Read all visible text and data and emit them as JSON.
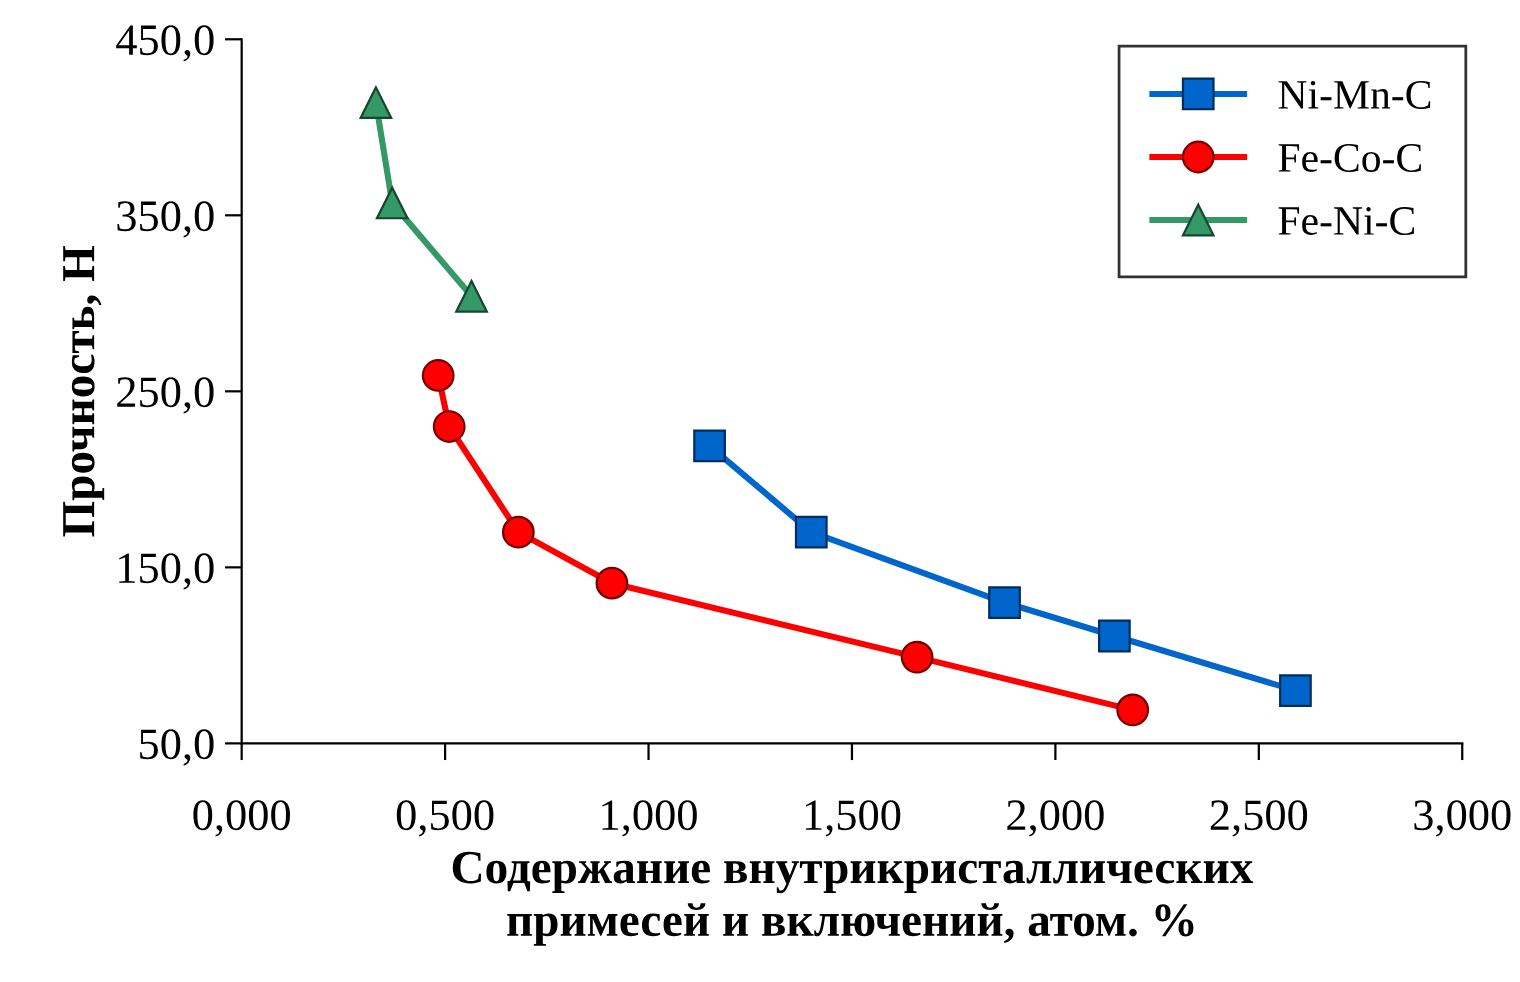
{
  "chart_data": {
    "type": "line",
    "xlabel": "Содержание внутрикристаллических\nпримесей и включений, атом. %",
    "ylabel": "Прочность, Н",
    "xlim": [
      0,
      3
    ],
    "ylim": [
      50,
      450
    ],
    "xticks": [
      {
        "value": 0,
        "label": "0,000"
      },
      {
        "value": 0.5,
        "label": "0,500"
      },
      {
        "value": 1,
        "label": "1,000"
      },
      {
        "value": 1.5,
        "label": "1,500"
      },
      {
        "value": 2,
        "label": "2,000"
      },
      {
        "value": 2.5,
        "label": "2,500"
      },
      {
        "value": 3,
        "label": "3,000"
      }
    ],
    "yticks": [
      {
        "value": 50,
        "label": "50,0"
      },
      {
        "value": 150,
        "label": "150,0"
      },
      {
        "value": 250,
        "label": "250,0"
      },
      {
        "value": 350,
        "label": "350,0"
      },
      {
        "value": 450,
        "label": "450,0"
      }
    ],
    "grid": false,
    "legend": "top right",
    "series": [
      {
        "name": "Ni-Mn-C",
        "color": "#0066cc",
        "marker": "square",
        "x": [
          1.15,
          1.4,
          1.875,
          2.145,
          2.59
        ],
        "values": [
          219,
          170,
          130,
          111,
          80
        ]
      },
      {
        "name": "Fe-Co-C",
        "color": "#ff0000",
        "marker": "circle",
        "x": [
          0.483,
          0.51,
          0.68,
          0.91,
          1.66,
          2.19
        ],
        "values": [
          259,
          230,
          170,
          141,
          99,
          69
        ]
      },
      {
        "name": "Fe-Ni-C",
        "color": "#339966",
        "marker": "triangle",
        "x": [
          0.33,
          0.37,
          0.565
        ],
        "values": [
          414,
          357,
          304
        ]
      }
    ]
  }
}
